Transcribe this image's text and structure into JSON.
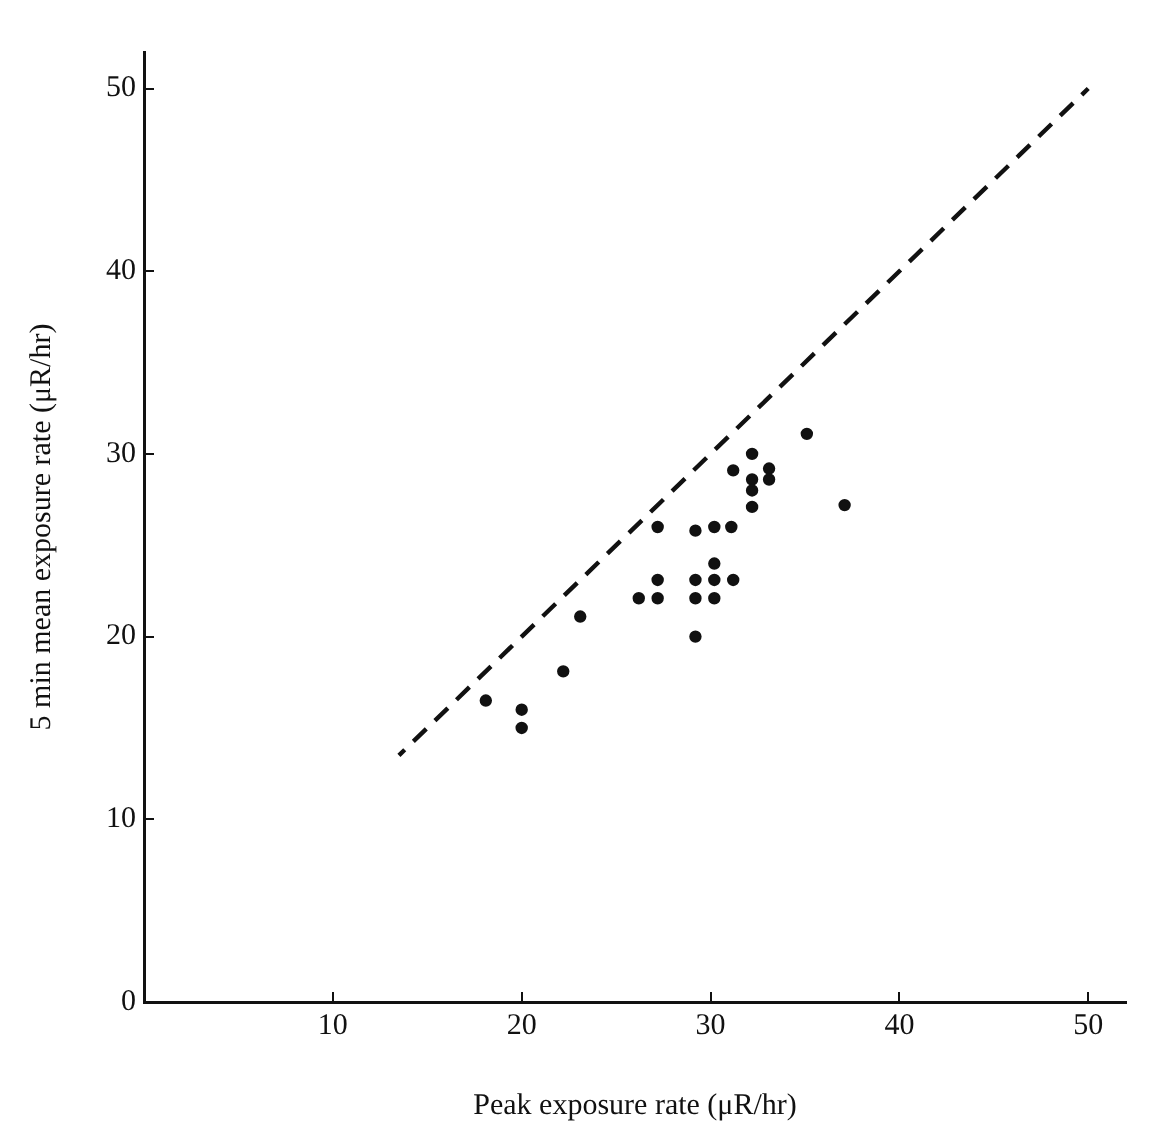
{
  "chart_data": {
    "type": "scatter",
    "xlabel": "Peak exposure rate (μR/hr)",
    "ylabel": "5 min mean exposure rate (μR/hr)",
    "xlim": [
      0,
      52
    ],
    "ylim": [
      0,
      52
    ],
    "xticks": [
      {
        "value": 0,
        "label": null
      },
      10,
      20,
      30,
      40,
      50
    ],
    "yticks": [
      0,
      10,
      20,
      30,
      40,
      50
    ],
    "grid": false,
    "legend": false,
    "marker": "circle",
    "series": [
      {
        "color": "#111111",
        "x": [
          18.1,
          20.0,
          20.0,
          22.2,
          23.1,
          26.2,
          27.2,
          27.2,
          27.2,
          29.2,
          29.2,
          29.2,
          29.2,
          30.2,
          30.2,
          30.2,
          30.2,
          31.2,
          31.1,
          31.2,
          32.2,
          33.1,
          33.1,
          32.2,
          32.2,
          32.2,
          35.1,
          37.1
        ],
        "values": [
          16.5,
          16.0,
          15.0,
          18.1,
          21.1,
          22.1,
          22.1,
          23.1,
          26.0,
          22.1,
          23.1,
          20.0,
          25.8,
          22.1,
          23.1,
          24.0,
          26.0,
          23.1,
          26.0,
          29.1,
          30.0,
          29.2,
          28.6,
          28.6,
          28.0,
          27.1,
          31.1,
          27.2
        ]
      },
      {
        "type": "line",
        "color": "#111111",
        "line_style": "dashed",
        "marker": "none",
        "x": [
          13.5,
          50
        ],
        "values": [
          13.5,
          50
        ]
      }
    ]
  }
}
